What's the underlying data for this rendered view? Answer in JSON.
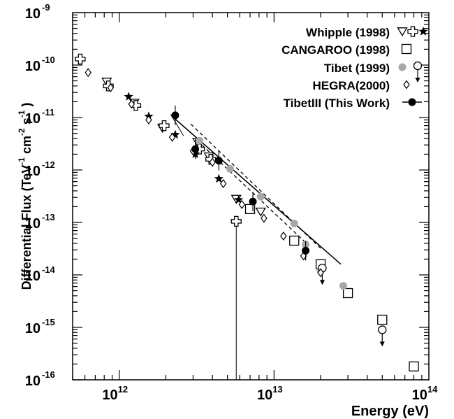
{
  "chart_data": {
    "type": "scatter",
    "xlabel": "Energy (eV)",
    "ylabel_parts": [
      "Differential Flux (TeV",
      "-1",
      " cm",
      "-2",
      " s",
      "-1",
      " )"
    ],
    "xscale": "log",
    "yscale": "log",
    "xlim": [
      500000000000.0,
      100000000000000.0
    ],
    "ylim": [
      1e-16,
      1e-09
    ],
    "x_ticks": [
      {
        "base": "10",
        "exp": "12",
        "value": 1000000000000.0
      },
      {
        "base": "10",
        "exp": "13",
        "value": 10000000000000.0
      },
      {
        "base": "10",
        "exp": "14",
        "value": 100000000000000.0
      }
    ],
    "y_ticks": [
      {
        "base": "10",
        "exp": "-16",
        "value": 1e-16
      },
      {
        "base": "10",
        "exp": "-15",
        "value": 1e-15
      },
      {
        "base": "10",
        "exp": "-14",
        "value": 1e-14
      },
      {
        "base": "10",
        "exp": "-13",
        "value": 1e-13
      },
      {
        "base": "10",
        "exp": "-12",
        "value": 1e-12
      },
      {
        "base": "10",
        "exp": "-11",
        "value": 1e-11
      },
      {
        "base": "10",
        "exp": "-10",
        "value": 1e-10
      },
      {
        "base": "10",
        "exp": "-9",
        "value": 1e-09
      }
    ],
    "legend_position": "top-right",
    "legend": [
      {
        "label": "Whipple (1998)",
        "markers": [
          "triangle-down-open",
          "cross-open",
          "star-filled"
        ]
      },
      {
        "label": "CANGAROO (1998)",
        "markers": [
          "square-open"
        ]
      },
      {
        "label": "Tibet (1999)",
        "markers": [
          "circle-gray",
          "circle-open-arrow"
        ]
      },
      {
        "label": "HEGRA(2000)",
        "markers": [
          "diamond-open"
        ]
      },
      {
        "label": "TibetIII (This Work)",
        "markers": [
          "circle-line"
        ]
      }
    ],
    "series": [
      {
        "name": "Whipple (1998)",
        "marker": "triangle-down-open",
        "points": [
          {
            "x": 830000000000.0,
            "y": 4.8e-11
          },
          {
            "x": 1250000000000.0,
            "y": 1.9e-11
          },
          {
            "x": 1900000000000.0,
            "y": 6.3e-12
          },
          {
            "x": 3200000000000.0,
            "y": 3.4e-12
          },
          {
            "x": 3800000000000.0,
            "y": 1.8e-12
          },
          {
            "x": 5700000000000.0,
            "y": 2.8e-13
          },
          {
            "x": 8200000000000.0,
            "y": 1.6e-13
          }
        ]
      },
      {
        "name": "Whipple (1998)",
        "marker": "cross-open",
        "points": [
          {
            "x": 560000000000.0,
            "y": 1.3e-10
          },
          {
            "x": 850000000000.0,
            "y": 4e-11
          },
          {
            "x": 1280000000000.0,
            "y": 1.7e-11
          },
          {
            "x": 1950000000000.0,
            "y": 7e-12
          },
          {
            "x": 3300000000000.0,
            "y": 2.5e-12
          },
          {
            "x": 3900000000000.0,
            "y": 1.6e-12
          },
          {
            "x": 5700000000000.0,
            "y": 1.05e-13
          }
        ]
      },
      {
        "name": "Whipple (1998)",
        "marker": "star-filled",
        "points": [
          {
            "x": 1150000000000.0,
            "y": 2.5e-11
          },
          {
            "x": 1550000000000.0,
            "y": 1.05e-11
          },
          {
            "x": 2300000000000.0,
            "y": 4.7e-12
          },
          {
            "x": 3100000000000.0,
            "y": 2e-12
          },
          {
            "x": 4400000000000.0,
            "y": 6.8e-13
          },
          {
            "x": 5900000000000.0,
            "y": 2.7e-13
          }
        ]
      },
      {
        "name": "CANGAROO (1998)",
        "marker": "square-open",
        "points": [
          {
            "x": 7000000000000.0,
            "y": 1.8e-13
          },
          {
            "x": 13500000000000.0,
            "y": 4.5e-14
          },
          {
            "x": 20000000000000.0,
            "y": 1.6e-14
          },
          {
            "x": 30000000000000.0,
            "y": 4.5e-15
          },
          {
            "x": 50000000000000.0,
            "y": 1.4e-15
          },
          {
            "x": 80000000000000.0,
            "y": 1.8e-16
          }
        ]
      },
      {
        "name": "Tibet (1999)",
        "marker": "circle-gray",
        "points": [
          {
            "x": 3300000000000.0,
            "y": 3.6e-12
          },
          {
            "x": 5200000000000.0,
            "y": 1.05e-12
          },
          {
            "x": 8200000000000.0,
            "y": 3.1e-13
          },
          {
            "x": 13500000000000.0,
            "y": 9.5e-14
          },
          {
            "x": 16000000000000.0,
            "y": 3.8e-14
          },
          {
            "x": 20000000000000.0,
            "y": 1.2e-14
          },
          {
            "x": 28000000000000.0,
            "y": 6.2e-15
          }
        ]
      },
      {
        "name": "Tibet (1999)",
        "marker": "circle-open-arrow",
        "points": [
          {
            "x": 20500000000000.0,
            "y": 1.35e-14
          },
          {
            "x": 50000000000000.0,
            "y": 9e-16
          }
        ]
      },
      {
        "name": "HEGRA(2000)",
        "marker": "diamond-open",
        "points": [
          {
            "x": 630000000000.0,
            "y": 7.2e-11
          },
          {
            "x": 880000000000.0,
            "y": 3.7e-11
          },
          {
            "x": 1200000000000.0,
            "y": 1.8e-11
          },
          {
            "x": 1550000000000.0,
            "y": 9e-12
          },
          {
            "x": 2200000000000.0,
            "y": 4.2e-12
          },
          {
            "x": 3000000000000.0,
            "y": 2.3e-12
          },
          {
            "x": 4000000000000.0,
            "y": 1.4e-12
          },
          {
            "x": 4700000000000.0,
            "y": 5.5e-13
          },
          {
            "x": 6200000000000.0,
            "y": 2.2e-13
          },
          {
            "x": 8600000000000.0,
            "y": 1.2e-13
          },
          {
            "x": 11500000000000.0,
            "y": 5.5e-14
          },
          {
            "x": 15500000000000.0,
            "y": 2.3e-14
          },
          {
            "x": 20000000000000.0,
            "y": 1.1e-14
          }
        ]
      },
      {
        "name": "TibetIII (This Work)",
        "marker": "circle-filled",
        "points": [
          {
            "x": 2300000000000.0,
            "y": 1.1e-11
          },
          {
            "x": 3100000000000.0,
            "y": 2.5e-12
          },
          {
            "x": 4400000000000.0,
            "y": 1.5e-12
          },
          {
            "x": 7300000000000.0,
            "y": 2.5e-13
          },
          {
            "x": 16000000000000.0,
            "y": 2.9e-14
          }
        ]
      }
    ],
    "fit_line": {
      "x": [
        2200000000000.0,
        27000000000000.0
      ],
      "y": [
        1.05e-11,
        1.6e-14
      ]
    },
    "fit_band_upper": {
      "x": [
        2900000000000.0,
        20500000000000.0
      ],
      "y": [
        7.5e-12,
        3e-14
      ]
    },
    "fit_band_lower": {
      "x": [
        3200000000000.0,
        16500000000000.0
      ],
      "y": [
        3.6e-12,
        3.8e-14
      ]
    },
    "vertical_line_x": 5700000000000.0,
    "thin_line": {
      "x": [
        2150000000000.0,
        2600000000000.0
      ],
      "y": [
        1.15e-11,
        4.5e-12
      ]
    }
  }
}
